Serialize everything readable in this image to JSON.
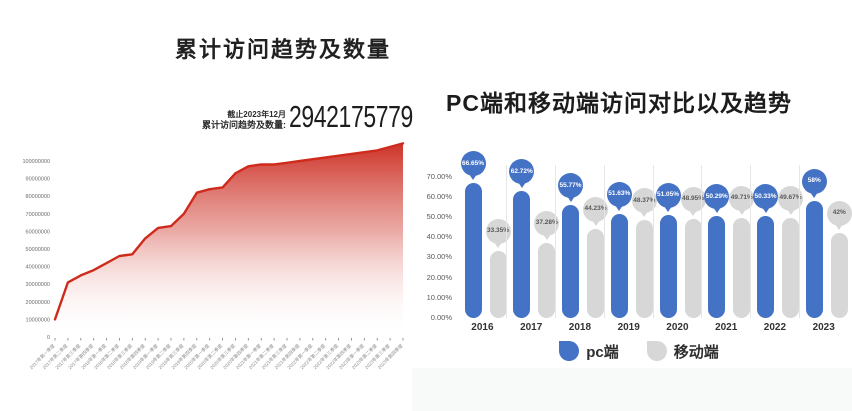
{
  "left_panel": {
    "title": "累计访问趋势及数量",
    "stat": {
      "caption": "截止2023年12月",
      "label": "累计访问趋势及数量:",
      "value": "2942175779"
    }
  },
  "right_panel": {
    "title": "PC端和移动端访问对比以及趋势",
    "legend": [
      {
        "label": "pc端",
        "color": "#4472c4"
      },
      {
        "label": "移动端",
        "color": "#d7d7d7"
      }
    ]
  },
  "colors": {
    "red_line": "#cf2b1d",
    "pc_blue": "#4472c4",
    "mobile_gray": "#d7d7d7",
    "gray_balloon_text": "#595959",
    "axis_text": "#6b6b6b"
  },
  "chart_data": [
    {
      "type": "area",
      "title": "累计访问趋势及数量",
      "x": [
        "2017年第一季度",
        "2017年第二季度",
        "2017年第三季度",
        "2017年第四季度",
        "2018年第一季度",
        "2018年第二季度",
        "2018年第三季度",
        "2018年第四季度",
        "2019年第一季度",
        "2019年第二季度",
        "2019年第三季度",
        "2019年第四季度",
        "2020年第一季度",
        "2020年第二季度",
        "2020年第三季度",
        "2020年第四季度",
        "2021年第一季度",
        "2021年第二季度",
        "2021年第三季度",
        "2021年第四季度",
        "2022年第一季度",
        "2022年第二季度",
        "2022年第三季度",
        "2022年第四季度",
        "2023年第一季度",
        "2023年第二季度",
        "2023年第三季度",
        "2023年第四季度"
      ],
      "values": [
        10000000,
        31000000,
        35000000,
        38000000,
        42000000,
        46000000,
        47000000,
        56000000,
        62000000,
        63000000,
        70000000,
        82000000,
        84000000,
        85000000,
        93000000,
        97000000,
        98000000,
        98000000,
        99000000,
        100000000,
        101000000,
        102000000,
        103000000,
        104000000,
        105000000,
        106000000,
        108000000,
        110000000
      ],
      "yticks": [
        "100000000",
        "90000000",
        "80000000",
        "70000000",
        "60000000",
        "50000000",
        "40000000",
        "30000000",
        "20000000",
        "10000000",
        "0"
      ],
      "ylim": [
        0,
        110000000
      ],
      "xlabel": "",
      "ylabel": "",
      "grid": false,
      "legend_position": "none",
      "line_color": "#cf2b1d"
    },
    {
      "type": "bar",
      "title": "PC端和移动端访问对比以及趋势",
      "categories": [
        "2016",
        "2017",
        "2018",
        "2019",
        "2020",
        "2021",
        "2022",
        "2023"
      ],
      "series": [
        {
          "name": "pc端",
          "color": "#4472c4",
          "values": [
            66.65,
            62.72,
            55.77,
            51.63,
            51.05,
            50.29,
            50.33,
            58
          ],
          "labels": [
            "66.65%",
            "62.72%",
            "55.77%",
            "51.63%",
            "51.05%",
            "50.29%",
            "50.33%",
            "58%"
          ]
        },
        {
          "name": "移动端",
          "color": "#d7d7d7",
          "values": [
            33.35,
            37.28,
            44.23,
            48.37,
            48.95,
            49.71,
            49.67,
            42
          ],
          "labels": [
            "33.35%",
            "37.28%",
            "44.23%",
            "48.37%",
            "48.95%",
            "49.71%",
            "49.67%",
            "42%"
          ]
        }
      ],
      "yticks": [
        "70.00%",
        "60.00%",
        "50.00%",
        "40.00%",
        "30.00%",
        "20.00%",
        "10.00%",
        "0.00%"
      ],
      "ylim": [
        0,
        78
      ],
      "xlabel": "",
      "ylabel": "",
      "grid": false,
      "legend_position": "bottom"
    }
  ]
}
